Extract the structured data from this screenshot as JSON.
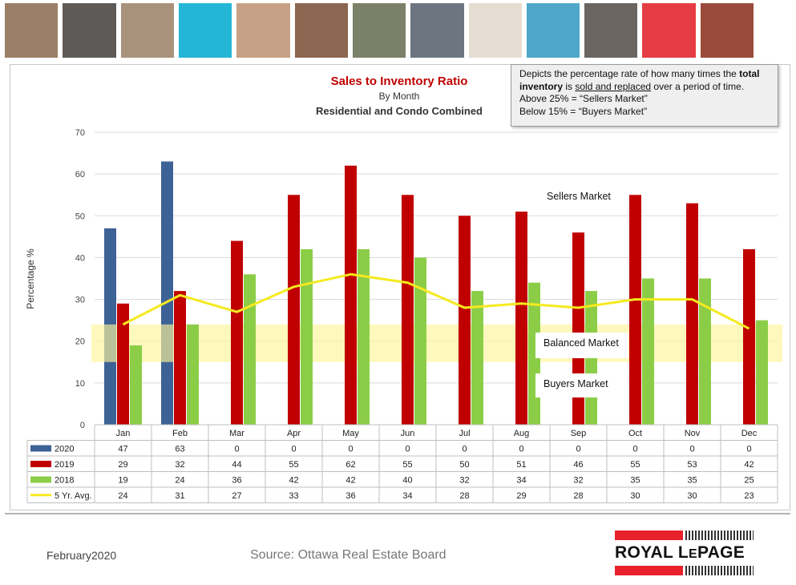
{
  "banner": {
    "photos": [
      {
        "name": "family-photo",
        "color": "#9c7f66"
      },
      {
        "name": "phone-hands-photo",
        "color": "#5e5a57"
      },
      {
        "name": "couple-photo",
        "color": "#a9927c"
      },
      {
        "name": "teal-block",
        "color": "#23b6d6"
      },
      {
        "name": "woman-phone-photo",
        "color": "#c7a185"
      },
      {
        "name": "smiling-couple-photo",
        "color": "#8c6650"
      },
      {
        "name": "house-photo",
        "color": "#7b8068"
      },
      {
        "name": "pen-signing-photo",
        "color": "#6d7680"
      },
      {
        "name": "beige-block",
        "color": "#e6ddd2"
      },
      {
        "name": "pool-child-photo",
        "color": "#4fa7c9"
      },
      {
        "name": "office-meeting-photo",
        "color": "#6a6561"
      },
      {
        "name": "red-block",
        "color": "#e53c43"
      },
      {
        "name": "father-child-photo",
        "color": "#9b4b3c"
      }
    ]
  },
  "note": {
    "line1": "Depicts the percentage rate of how many times the ",
    "bold1": "total inventory",
    "mid": " is ",
    "underlined": "sold and replaced",
    "rest": " over a period of time.",
    "above": "Above 25% = “Sellers Market”",
    "below": "Below 15% = “Buyers Market”"
  },
  "zones": {
    "sellers": "Sellers Market",
    "balanced": "Balanced Market",
    "buyers": "Buyers Market"
  },
  "footer": {
    "date": "February2020",
    "source": "Source: Ottawa Real Estate Board",
    "logo_left": "ROYAL L",
    "logo_small": "E",
    "logo_right": "PAGE"
  },
  "chart_data": {
    "type": "bar",
    "title": "Sales to Inventory Ratio",
    "subtitle": "By Month",
    "subtitle2": "Residential and Condo Combined",
    "ylabel": "Percentage %",
    "ylim": [
      0,
      70
    ],
    "yticks": [
      0,
      10,
      20,
      30,
      40,
      50,
      60,
      70
    ],
    "grid": true,
    "legend": "data-table-left",
    "categories": [
      "Jan",
      "Feb",
      "Mar",
      "Apr",
      "May",
      "Jun",
      "Jul",
      "Aug",
      "Sep",
      "Oct",
      "Nov",
      "Dec"
    ],
    "balanced_band": [
      15,
      24
    ],
    "series": [
      {
        "name": "2020",
        "kind": "bar",
        "color": "#3d6296",
        "values": [
          47,
          63,
          0,
          0,
          0,
          0,
          0,
          0,
          0,
          0,
          0,
          0
        ]
      },
      {
        "name": "2019",
        "kind": "bar",
        "color": "#c00000",
        "values": [
          29,
          32,
          44,
          55,
          62,
          55,
          50,
          51,
          46,
          55,
          53,
          42
        ]
      },
      {
        "name": "2018",
        "kind": "bar",
        "color": "#8ccd47",
        "values": [
          19,
          24,
          36,
          42,
          42,
          40,
          32,
          34,
          32,
          35,
          35,
          25
        ]
      },
      {
        "name": "5 Yr. Avg.",
        "kind": "line",
        "color": "#f5ea1f",
        "values": [
          24,
          31,
          27,
          33,
          36,
          34,
          28,
          29,
          28,
          30,
          30,
          23
        ]
      }
    ]
  }
}
